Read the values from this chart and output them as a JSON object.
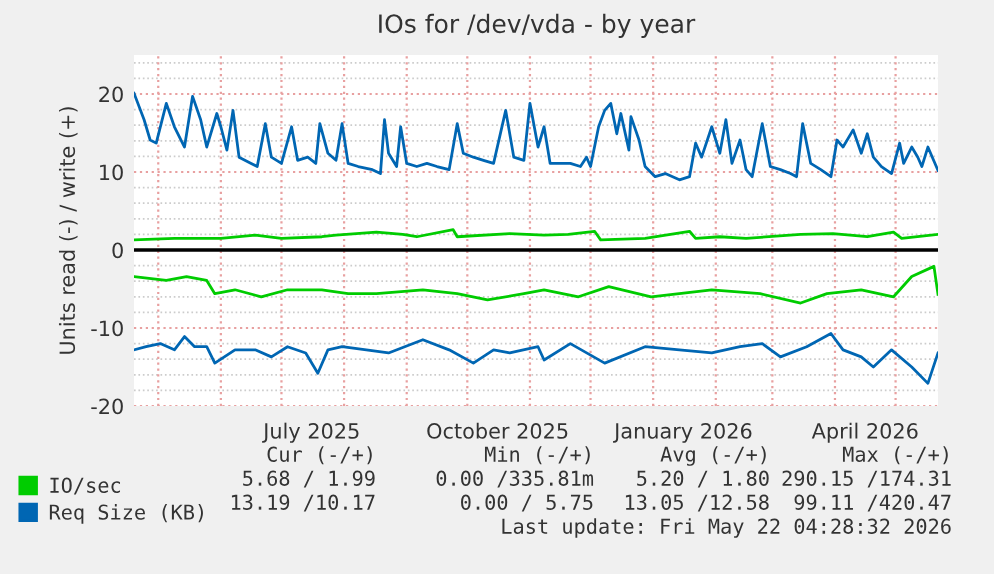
{
  "chart_data": {
    "type": "line",
    "title": "IOs for /dev/vda - by year",
    "ylabel": "Units read (-) / write (+)",
    "xlim": [
      "2025-04-19",
      "2026-05-22"
    ],
    "ylim": [
      -20,
      25
    ],
    "yticks": [
      -20,
      -10,
      0,
      10,
      20
    ],
    "xticks": [
      {
        "value": "2025-05-01",
        "label": null
      },
      {
        "value": "2025-06-01",
        "label": null
      },
      {
        "value": "2025-07-01",
        "label": null
      },
      {
        "value": "2025-07-16",
        "label": "July 2025"
      },
      {
        "value": "2025-08-01",
        "label": null
      },
      {
        "value": "2025-09-01",
        "label": null
      },
      {
        "value": "2025-10-01",
        "label": null
      },
      {
        "value": "2025-10-16",
        "label": "October 2025"
      },
      {
        "value": "2025-11-01",
        "label": null
      },
      {
        "value": "2025-12-01",
        "label": null
      },
      {
        "value": "2026-01-01",
        "label": null
      },
      {
        "value": "2026-01-16",
        "label": "January 2026"
      },
      {
        "value": "2026-02-01",
        "label": null
      },
      {
        "value": "2026-03-01",
        "label": null
      },
      {
        "value": "2026-04-01",
        "label": null
      },
      {
        "value": "2026-04-16",
        "label": "April 2026"
      },
      {
        "value": "2026-05-01",
        "label": null
      }
    ],
    "grid": true,
    "legend": "bottom",
    "line_style": "solid",
    "marker": "none",
    "ref_lines": [
      {
        "axis": "y",
        "value": 0,
        "label": null,
        "color": "#000000"
      }
    ],
    "series": [
      {
        "name": "IO/sec",
        "color": "#00cc00",
        "x": [
          "2025-04-19",
          "2025-05-09",
          "2025-06-01",
          "2025-06-18",
          "2025-07-01",
          "2025-07-21",
          "2025-07-28",
          "2025-08-17",
          "2025-08-30",
          "2025-09-06",
          "2025-09-24",
          "2025-09-26",
          "2025-10-22",
          "2025-11-08",
          "2025-11-20",
          "2025-12-03",
          "2025-12-06",
          "2025-12-28",
          "2026-01-19",
          "2026-01-22",
          "2026-02-03",
          "2026-02-16",
          "2026-03-15",
          "2026-03-31",
          "2026-04-17",
          "2026-04-30",
          "2026-05-04",
          "2026-05-22"
        ],
        "values": [
          1.3,
          1.5,
          1.5,
          1.9,
          1.5,
          1.7,
          1.9,
          2.3,
          2.0,
          1.7,
          2.6,
          1.7,
          2.1,
          1.9,
          2.0,
          2.4,
          1.3,
          1.5,
          2.4,
          1.5,
          1.7,
          1.5,
          2.0,
          2.1,
          1.7,
          2.3,
          1.5,
          2.0
        ]
      },
      {
        "color": "#00cc00",
        "x": [
          "2025-04-19",
          "2025-05-05",
          "2025-05-15",
          "2025-05-25",
          "2025-05-29",
          "2025-06-08",
          "2025-06-21",
          "2025-07-04",
          "2025-07-21",
          "2025-08-03",
          "2025-08-17",
          "2025-09-09",
          "2025-09-26",
          "2025-10-11",
          "2025-10-29",
          "2025-11-08",
          "2025-11-25",
          "2025-12-10",
          "2025-12-31",
          "2026-01-30",
          "2026-02-23",
          "2026-03-15",
          "2026-03-28",
          "2026-04-14",
          "2026-04-30",
          "2026-05-09",
          "2026-05-20",
          "2026-05-22"
        ],
        "values": [
          -3.4,
          -3.9,
          -3.4,
          -3.9,
          -5.6,
          -5.1,
          -6.0,
          -5.1,
          -5.1,
          -5.6,
          -5.6,
          -5.1,
          -5.6,
          -6.4,
          -5.6,
          -5.1,
          -6.0,
          -4.7,
          -6.0,
          -5.1,
          -5.6,
          -6.8,
          -5.6,
          -5.1,
          -6.0,
          -3.4,
          -2.1,
          -5.7
        ]
      },
      {
        "name": "Req Size (KB)",
        "color": "#0066b3",
        "x": [
          "2025-04-19",
          "2025-04-24",
          "2025-04-27",
          "2025-04-30",
          "2025-05-05",
          "2025-05-09",
          "2025-05-14",
          "2025-05-18",
          "2025-05-22",
          "2025-05-25",
          "2025-05-30",
          "2025-06-01",
          "2025-06-04",
          "2025-06-07",
          "2025-06-10",
          "2025-06-16",
          "2025-06-19",
          "2025-06-23",
          "2025-06-26",
          "2025-07-01",
          "2025-07-06",
          "2025-07-09",
          "2025-07-14",
          "2025-07-18",
          "2025-07-20",
          "2025-07-24",
          "2025-07-28",
          "2025-07-31",
          "2025-08-03",
          "2025-08-08",
          "2025-08-15",
          "2025-08-19",
          "2025-08-21",
          "2025-08-23",
          "2025-08-27",
          "2025-08-29",
          "2025-09-01",
          "2025-09-06",
          "2025-09-11",
          "2025-09-16",
          "2025-09-22",
          "2025-09-26",
          "2025-09-29",
          "2025-10-04",
          "2025-10-09",
          "2025-10-14",
          "2025-10-20",
          "2025-10-24",
          "2025-10-29",
          "2025-11-01",
          "2025-11-05",
          "2025-11-08",
          "2025-11-11",
          "2025-11-16",
          "2025-11-21",
          "2025-11-26",
          "2025-11-29",
          "2025-12-01",
          "2025-12-05",
          "2025-12-08",
          "2025-12-11",
          "2025-12-14",
          "2025-12-16",
          "2025-12-20",
          "2025-12-21",
          "2025-12-25",
          "2025-12-28",
          "2026-01-02",
          "2026-01-07",
          "2026-01-14",
          "2026-01-19",
          "2026-01-22",
          "2026-01-25",
          "2026-01-30",
          "2026-02-03",
          "2026-02-06",
          "2026-02-09",
          "2026-02-13",
          "2026-02-16",
          "2026-02-19",
          "2026-02-24",
          "2026-02-28",
          "2026-03-05",
          "2026-03-10",
          "2026-03-13",
          "2026-03-16",
          "2026-03-20",
          "2026-03-25",
          "2026-03-30",
          "2026-04-02",
          "2026-04-05",
          "2026-04-10",
          "2026-04-14",
          "2026-04-17",
          "2026-04-20",
          "2026-04-24",
          "2026-04-29",
          "2026-05-03",
          "2026-05-05",
          "2026-05-09",
          "2026-05-12",
          "2026-05-14",
          "2026-05-17",
          "2026-05-22"
        ],
        "values": [
          20.1,
          16.7,
          14.1,
          13.7,
          18.8,
          15.8,
          13.2,
          19.7,
          16.7,
          13.2,
          17.5,
          15.8,
          12.8,
          17.9,
          11.9,
          11.1,
          10.7,
          16.2,
          11.9,
          11.1,
          15.8,
          11.5,
          11.9,
          11.1,
          16.2,
          12.4,
          11.5,
          16.2,
          11.1,
          10.7,
          10.3,
          9.8,
          16.7,
          12.4,
          10.7,
          15.8,
          11.1,
          10.7,
          11.1,
          10.7,
          10.3,
          16.2,
          12.4,
          11.9,
          11.5,
          11.1,
          17.9,
          11.9,
          11.5,
          18.8,
          13.2,
          15.8,
          11.1,
          11.1,
          11.1,
          10.7,
          11.9,
          10.7,
          15.8,
          17.9,
          18.8,
          14.9,
          17.5,
          12.8,
          17.1,
          14.1,
          10.7,
          9.4,
          9.8,
          9.0,
          9.4,
          13.7,
          11.9,
          15.8,
          12.4,
          16.7,
          11.1,
          14.1,
          10.3,
          9.4,
          16.2,
          10.7,
          10.3,
          9.8,
          9.4,
          16.2,
          11.1,
          10.3,
          9.4,
          14.1,
          13.2,
          15.4,
          12.4,
          14.9,
          11.9,
          10.7,
          9.8,
          13.7,
          11.1,
          13.2,
          11.9,
          10.7,
          13.2,
          10.2
        ]
      },
      {
        "color": "#0066b3",
        "x": [
          "2025-04-19",
          "2025-04-25",
          "2025-05-02",
          "2025-05-09",
          "2025-05-14",
          "2025-05-19",
          "2025-05-25",
          "2025-05-29",
          "2025-06-08",
          "2025-06-18",
          "2025-06-26",
          "2025-07-04",
          "2025-07-13",
          "2025-07-19",
          "2025-07-24",
          "2025-07-31",
          "2025-08-12",
          "2025-08-23",
          "2025-09-09",
          "2025-09-22",
          "2025-10-04",
          "2025-10-14",
          "2025-10-22",
          "2025-11-05",
          "2025-11-08",
          "2025-11-21",
          "2025-12-08",
          "2025-12-28",
          "2026-01-14",
          "2026-01-30",
          "2026-02-13",
          "2026-02-24",
          "2026-03-05",
          "2026-03-18",
          "2026-03-30",
          "2026-04-05",
          "2026-04-14",
          "2026-04-20",
          "2026-04-29",
          "2026-05-09",
          "2026-05-17",
          "2026-05-22"
        ],
        "values": [
          -12.8,
          -12.4,
          -12.0,
          -12.8,
          -11.1,
          -12.4,
          -12.4,
          -14.5,
          -12.8,
          -12.8,
          -13.7,
          -12.4,
          -13.2,
          -15.8,
          -12.8,
          -12.4,
          -12.8,
          -13.2,
          -11.5,
          -12.8,
          -14.5,
          -12.8,
          -13.2,
          -12.4,
          -14.1,
          -12.0,
          -14.5,
          -12.4,
          -12.8,
          -13.2,
          -12.4,
          -12.0,
          -13.7,
          -12.4,
          -10.7,
          -12.8,
          -13.7,
          -15.0,
          -12.8,
          -15.0,
          -17.1,
          -13.2
        ]
      }
    ],
    "annotations": [
      "Cur (-/+)",
      "Min (-/+)",
      "Avg (-/+)",
      "Max (-/+)",
      "5.68 / 1.99",
      "0.00 /335.81m",
      "5.20 / 1.80",
      "290.15 /174.31",
      "13.19 /10.17",
      "0.00 / 5.75",
      "13.05 /12.58",
      "99.11 /420.47",
      "Last update: Fri May 22 04:28:32 2026"
    ]
  }
}
